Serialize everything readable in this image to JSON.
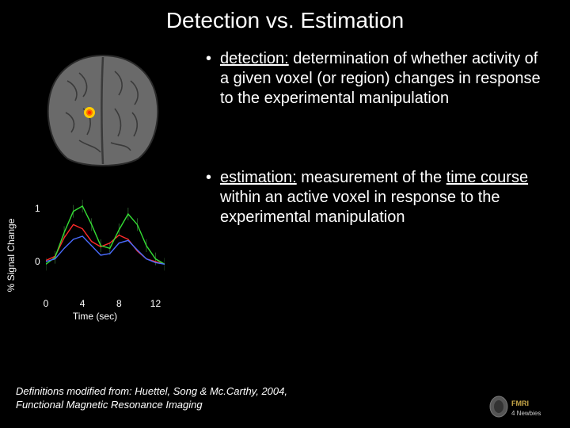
{
  "title": "Detection vs. Estimation",
  "detection": {
    "term": "detection:",
    "rest": " determination of whether activity of a given voxel (or region) changes in response to the experimental manipulation"
  },
  "estimation": {
    "prefix": "",
    "term": "estimation:",
    "mid1": " measurement of the ",
    "u1": "time course",
    "mid2": " within an active voxel in response to the experimental manipulation"
  },
  "chart": {
    "ylabel": "% Signal Change",
    "xlabel": "Time (sec)",
    "yticks": [
      {
        "v": 1,
        "label": "1"
      },
      {
        "v": 0,
        "label": "0"
      }
    ],
    "xticks": [
      {
        "v": 0,
        "label": "0"
      },
      {
        "v": 4,
        "label": "4"
      },
      {
        "v": 8,
        "label": "8"
      },
      {
        "v": 12,
        "label": "12"
      }
    ],
    "xlim": [
      0,
      13
    ],
    "ylim": [
      -0.3,
      1.2
    ],
    "background": "#000000",
    "axis_color": "#888888",
    "label_fontsize": 12,
    "series": [
      {
        "name": "red",
        "color": "#ff2a2a",
        "width": 1.4,
        "points": [
          [
            0,
            0.02
          ],
          [
            1,
            0.1
          ],
          [
            2,
            0.45
          ],
          [
            3,
            0.7
          ],
          [
            4,
            0.62
          ],
          [
            5,
            0.38
          ],
          [
            6,
            0.28
          ],
          [
            7,
            0.35
          ],
          [
            8,
            0.5
          ],
          [
            9,
            0.42
          ],
          [
            10,
            0.2
          ],
          [
            11,
            0.05
          ],
          [
            12,
            0.0
          ],
          [
            13,
            -0.05
          ]
        ]
      },
      {
        "name": "green",
        "color": "#33dd33",
        "width": 1.4,
        "points": [
          [
            0,
            -0.05
          ],
          [
            1,
            0.08
          ],
          [
            2,
            0.55
          ],
          [
            3,
            0.95
          ],
          [
            4,
            1.05
          ],
          [
            5,
            0.7
          ],
          [
            6,
            0.3
          ],
          [
            7,
            0.25
          ],
          [
            8,
            0.6
          ],
          [
            9,
            0.9
          ],
          [
            10,
            0.7
          ],
          [
            11,
            0.3
          ],
          [
            12,
            0.05
          ],
          [
            13,
            -0.05
          ]
        ]
      },
      {
        "name": "blue",
        "color": "#4a6cff",
        "width": 1.4,
        "points": [
          [
            0,
            0.0
          ],
          [
            1,
            0.05
          ],
          [
            2,
            0.25
          ],
          [
            3,
            0.42
          ],
          [
            4,
            0.48
          ],
          [
            5,
            0.3
          ],
          [
            6,
            0.12
          ],
          [
            7,
            0.15
          ],
          [
            8,
            0.35
          ],
          [
            9,
            0.4
          ],
          [
            10,
            0.22
          ],
          [
            11,
            0.05
          ],
          [
            12,
            -0.02
          ],
          [
            13,
            -0.05
          ]
        ]
      }
    ],
    "err_color": "#336633",
    "err_width": 0.8,
    "err_height": 0.12
  },
  "brain": {
    "bg": "#000000",
    "tissue_fill": "#6a6a6a",
    "tissue_stroke": "#2a2a2a",
    "sulci": "#3a3a3a",
    "activation_colors": [
      "#ffcc00",
      "#ff6a00",
      "#ff2a00"
    ],
    "activation_center": [
      68,
      80
    ],
    "activation_radii": [
      7,
      4,
      2
    ]
  },
  "citation": {
    "line1": "Definitions modified from: Huettel, Song & Mc.Carthy, 2004,",
    "line2": "Functional Magnetic Resonance Imaging"
  },
  "logo": {
    "text1": "FMRI",
    "text2": "4 Newbies",
    "accent": "#c8a848",
    "gray": "#cccccc"
  }
}
